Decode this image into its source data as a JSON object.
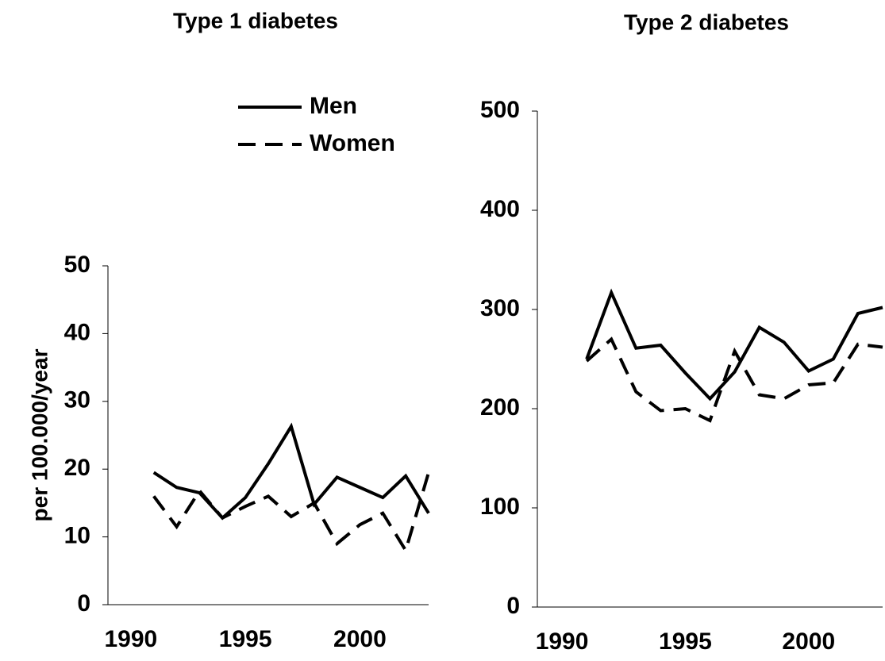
{
  "chart_data": [
    {
      "type": "line",
      "title": "Type 1 diabetes",
      "y_label": "per 100.000/year",
      "x": [
        1991,
        1992,
        1993,
        1994,
        1995,
        1996,
        1997,
        1998,
        1999,
        2000,
        2001,
        2002,
        2003
      ],
      "series": [
        {
          "name": "Men",
          "color": "#000000",
          "dash": "solid",
          "values": [
            19.5,
            17.3,
            16.5,
            12.8,
            15.8,
            20.8,
            26.3,
            14.8,
            18.8,
            17.3,
            15.8,
            19,
            13.5
          ]
        },
        {
          "name": "Women",
          "color": "#000000",
          "dash": "dashed",
          "values": [
            16,
            11.5,
            16.8,
            12.8,
            14.5,
            16,
            13,
            15,
            9,
            11.8,
            13.5,
            8,
            19.5
          ]
        }
      ],
      "xlim": [
        1989,
        2003
      ],
      "xticks": [
        1990,
        1995,
        2000
      ],
      "ylim": [
        0,
        50
      ],
      "yticks": [
        0,
        10,
        20,
        30,
        40,
        50
      ],
      "legend": "top-right"
    },
    {
      "type": "line",
      "title": "Type 2 diabetes",
      "x": [
        1991,
        1992,
        1993,
        1994,
        1995,
        1996,
        1997,
        1998,
        1999,
        2000,
        2001,
        2002,
        2003
      ],
      "series": [
        {
          "color": "#000000",
          "dash": "solid",
          "values": [
            250,
            317,
            261,
            264,
            236,
            210,
            237,
            282,
            267,
            238,
            250,
            296,
            302
          ]
        },
        {
          "color": "#000000",
          "dash": "dashed",
          "values": [
            248,
            270,
            217,
            198,
            200,
            188,
            258,
            214,
            210,
            224,
            226,
            265,
            262
          ]
        }
      ],
      "xlim": [
        1989,
        2003
      ],
      "xticks": [
        1990,
        1995,
        2000
      ],
      "ylim": [
        0,
        500
      ],
      "yticks": [
        0,
        100,
        200,
        300,
        400,
        500
      ]
    }
  ]
}
